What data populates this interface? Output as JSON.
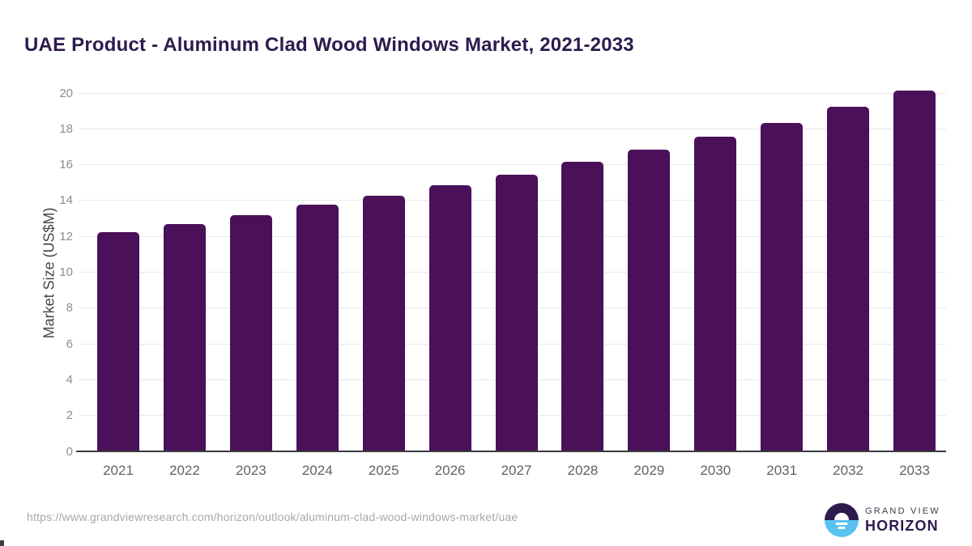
{
  "page": {
    "title": "UAE Product - Aluminum Clad Wood Windows Market, 2021-2033",
    "source_url": "https://www.grandviewresearch.com/horizon/outlook/aluminum-clad-wood-windows-market/uae"
  },
  "logo": {
    "line1": "GRAND VIEW",
    "line2": "HORIZON"
  },
  "chart_data": {
    "type": "bar",
    "title": "UAE Product - Aluminum Clad Wood Windows Market, 2021-2033",
    "categories": [
      "2021",
      "2022",
      "2023",
      "2024",
      "2025",
      "2026",
      "2027",
      "2028",
      "2029",
      "2030",
      "2031",
      "2032",
      "2033"
    ],
    "values": [
      12.25,
      12.7,
      13.2,
      13.75,
      14.25,
      14.85,
      15.45,
      16.15,
      16.85,
      17.55,
      18.35,
      19.25,
      20.15
    ],
    "xlabel": "",
    "ylabel": "Market Size (US$M)",
    "ylim": [
      0,
      20
    ],
    "ytick_step": 2,
    "grid": true,
    "legend_position": "none",
    "bar_color": "#4a1059"
  },
  "colors": {
    "title": "#2d1b4e",
    "bar": "#4a1059",
    "gridline": "#e8e8e8",
    "axis_line": "#3b3b3b",
    "tick_label": "#8d8d8d",
    "x_label": "#5f6368",
    "y_axis_title": "#474747",
    "url_text": "#a8a8a8",
    "logo_dark": "#2d1b4e",
    "logo_blue": "#59c2f0"
  }
}
